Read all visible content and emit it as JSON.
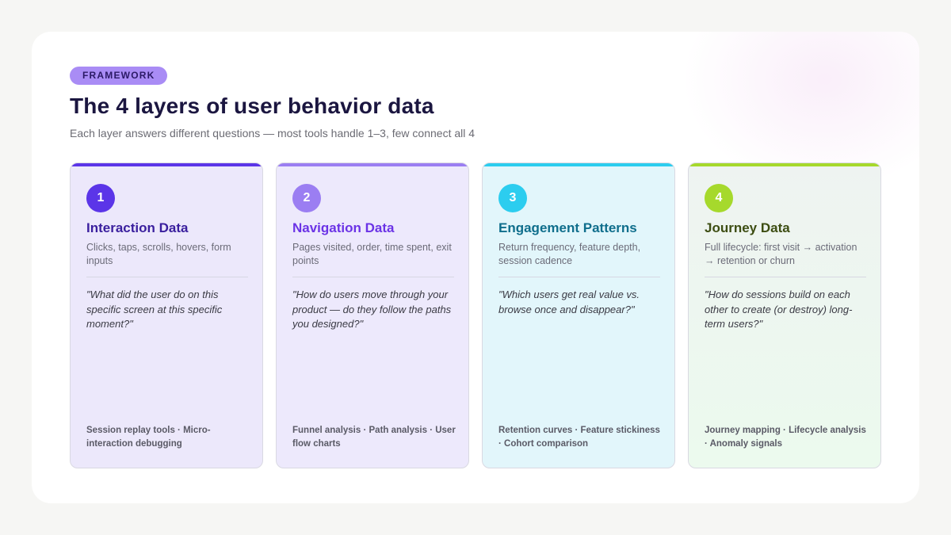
{
  "badge": "FRAMEWORK",
  "title": "The 4 layers of user behavior data",
  "subtitle": "Each layer answers different questions — most tools handle 1–3, few connect all 4",
  "colors": {
    "layer1": "#5b35e8",
    "layer2": "#9b7ef2",
    "layer3": "#2ccdef",
    "layer4": "#a6d92c",
    "name1": "#3a1f9e",
    "name2": "#6b33e6",
    "name3": "#0f6e8c",
    "name4": "#3d4d12"
  },
  "layers": [
    {
      "number": "1",
      "name": "Interaction Data",
      "description": "Clicks, taps, scrolls, hovers, form inputs",
      "quote": "\"What did the user do on this specific screen at this specific moment?\"",
      "tools": "Session replay tools · Micro-interaction debugging"
    },
    {
      "number": "2",
      "name": "Navigation Data",
      "description": "Pages visited, order, time spent, exit points",
      "quote": "\"How do users move through your product — do they follow the paths you designed?\"",
      "tools": "Funnel analysis · Path analysis · User flow charts"
    },
    {
      "number": "3",
      "name": "Engagement Patterns",
      "description": "Return frequency, feature depth, session cadence",
      "quote": "\"Which users get real value vs. browse once and disappear?\"",
      "tools": "Retention curves · Feature stickiness · Cohort comparison"
    },
    {
      "number": "4",
      "name": "Journey Data",
      "description": "Full lifecycle: first visit → activation → retention or churn",
      "quote": "\"How do sessions build on each other to create (or destroy) long-term users?\"",
      "tools": "Journey mapping · Lifecycle analysis · Anomaly signals"
    }
  ]
}
